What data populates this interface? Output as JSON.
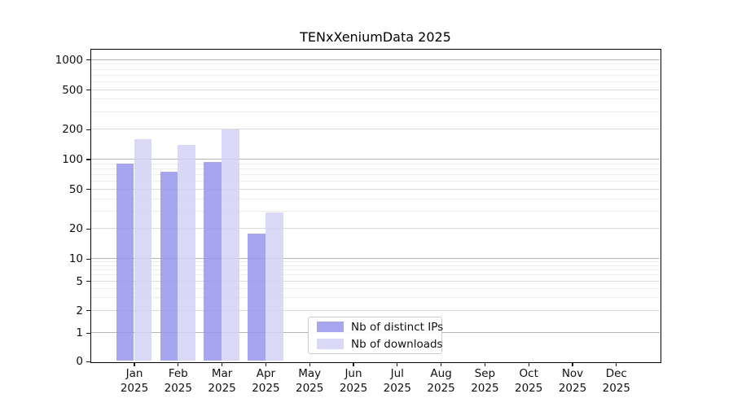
{
  "chart_data": {
    "type": "bar",
    "title": "TENxXeniumData 2025",
    "year": "2025",
    "categories": [
      "Jan",
      "Feb",
      "Mar",
      "Apr",
      "May",
      "Jun",
      "Jul",
      "Aug",
      "Sep",
      "Oct",
      "Nov",
      "Dec"
    ],
    "series": [
      {
        "name": "Nb of distinct IPs",
        "color": "#a7a7f0",
        "values": [
          90,
          75,
          93,
          18,
          null,
          null,
          null,
          null,
          null,
          null,
          null,
          null
        ]
      },
      {
        "name": "Nb of downloads",
        "color": "#d9d9f7",
        "values": [
          158,
          140,
          197,
          29,
          null,
          null,
          null,
          null,
          null,
          null,
          null,
          null
        ]
      }
    ],
    "y_axis": {
      "scale": "symlog",
      "ticks": [
        0,
        1,
        2,
        5,
        10,
        20,
        50,
        100,
        200,
        500,
        1000
      ],
      "range": [
        0,
        1000
      ]
    },
    "x_axis": {
      "label_format": "month-over-year"
    },
    "grid": true,
    "legend_position": "lower-center"
  }
}
